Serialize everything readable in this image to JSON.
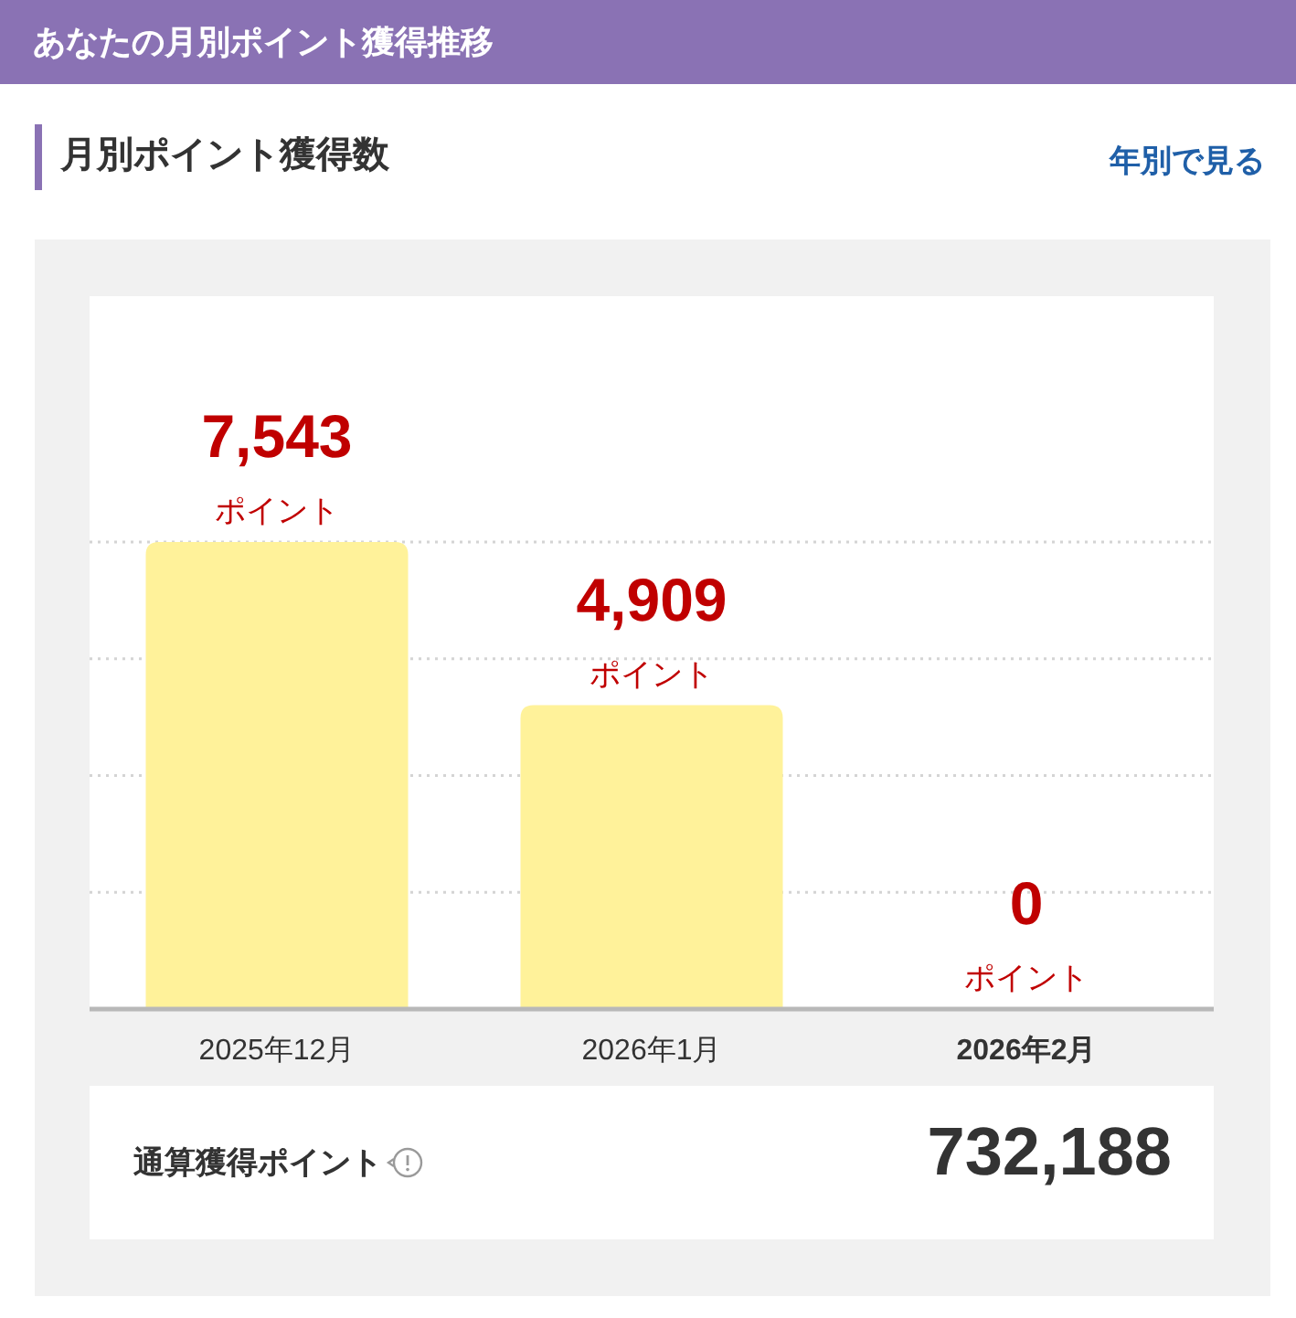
{
  "chart_data": {
    "type": "bar",
    "title": "あなたの月別ポイント獲得推移",
    "subtitle": "月別ポイント獲得数",
    "categories": [
      "2025年12月",
      "2026年1月",
      "2026年2月"
    ],
    "values": [
      7543,
      4909,
      0
    ],
    "color": "#fff29a",
    "value_labels": [
      "7,543\nポイント",
      "4,909\nポイント",
      "0\nポイント"
    ],
    "grid": "y",
    "annotations": [
      "年別で見る",
      "通算獲得ポイント",
      "732,188"
    ]
  }
}
